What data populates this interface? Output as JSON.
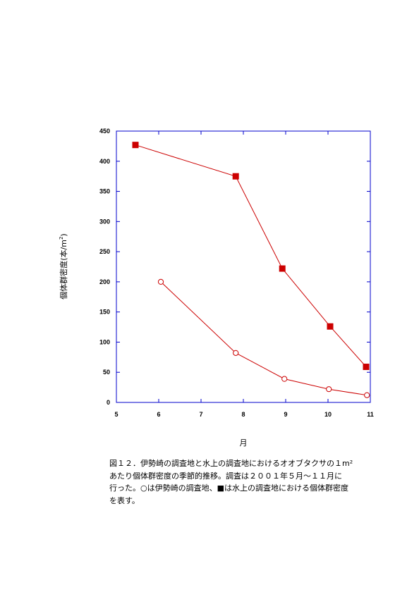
{
  "chart_data": {
    "type": "line",
    "xlabel": "月",
    "ylabel": "個体群密度(本/m",
    "ylabel_superscript": "2",
    "ylabel_close": ")",
    "xlim": [
      5,
      11
    ],
    "ylim": [
      0,
      450
    ],
    "xticks": [
      5,
      6,
      7,
      8,
      9,
      10,
      11
    ],
    "yticks": [
      0,
      50,
      100,
      150,
      200,
      250,
      300,
      350,
      400,
      450
    ],
    "grid": false,
    "series": [
      {
        "marker": "filled-square",
        "color": "#cc0000",
        "x": [
          5.45,
          7.82,
          8.92,
          10.05,
          10.9
        ],
        "y": [
          427,
          375,
          222,
          126,
          59
        ]
      },
      {
        "marker": "open-circle",
        "color": "#cc0000",
        "x": [
          6.05,
          7.82,
          8.97,
          10.02,
          10.92
        ],
        "y": [
          200,
          82,
          39,
          22,
          12
        ]
      }
    ]
  },
  "caption": {
    "lines": [
      "図１２．伊勢崎の調査地と水上の調査地におけるオオブタクサの１m²",
      "あたり個体群密度の季節的推移。調査は２００１年５月～１１月に",
      "行った。○は伊勢崎の調査地、■は水上の調査地における個体群密度",
      "を表す。"
    ]
  }
}
